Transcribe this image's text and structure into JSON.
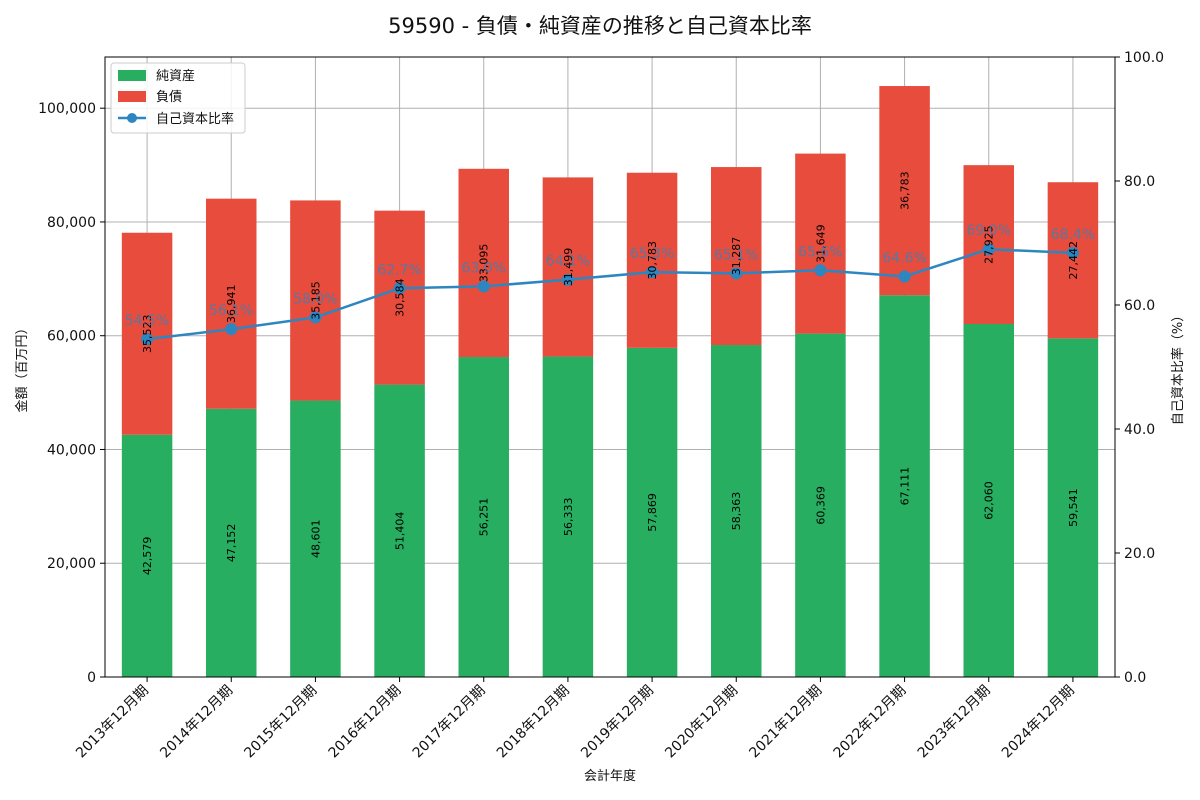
{
  "chart_data": {
    "type": "bar",
    "title": "59590 - 負債・純資産の推移と自己資本比率",
    "xlabel": "会計年度",
    "ylabel": "金額（百万円）",
    "y2label": "自己資本比率（%）",
    "ylim": [
      0,
      109000
    ],
    "y2lim": [
      0,
      100
    ],
    "yticks": [
      "0",
      "20,000",
      "40,000",
      "60,000",
      "80,000",
      "100,000"
    ],
    "y2ticks": [
      "0.0",
      "20.0",
      "40.0",
      "60.0",
      "80.0",
      "100.0"
    ],
    "grid": true,
    "legend_position": "top-left",
    "categories": [
      "2013年12月期",
      "2014年12月期",
      "2015年12月期",
      "2016年12月期",
      "2017年12月期",
      "2018年12月期",
      "2019年12月期",
      "2020年12月期",
      "2021年12月期",
      "2022年12月期",
      "2023年12月期",
      "2024年12月期"
    ],
    "series": [
      {
        "name": "純資産",
        "kind": "bar",
        "color": "#27ae60",
        "values": [
          42579,
          47152,
          48601,
          51404,
          56251,
          56333,
          57869,
          58363,
          60369,
          67111,
          62060,
          59541
        ],
        "labels": [
          "42,579",
          "47,152",
          "48,601",
          "51,404",
          "56,251",
          "56,333",
          "57,869",
          "58,363",
          "60,369",
          "67,111",
          "62,060",
          "59,541"
        ]
      },
      {
        "name": "負債",
        "kind": "bar",
        "color": "#e74c3c",
        "values": [
          35523,
          36941,
          35185,
          30584,
          33095,
          31499,
          30783,
          31287,
          31649,
          36783,
          27925,
          27442
        ],
        "labels": [
          "35,523",
          "36,941",
          "35,185",
          "30,584",
          "33,095",
          "31,499",
          "30,783",
          "31,287",
          "31,649",
          "36,783",
          "27,925",
          "27,442"
        ]
      },
      {
        "name": "自己資本比率",
        "kind": "line",
        "axis": "right",
        "color": "#2e86c1",
        "values": [
          54.5,
          56.1,
          58.0,
          62.7,
          63.0,
          64.1,
          65.3,
          65.1,
          65.6,
          64.6,
          69.0,
          68.4
        ],
        "labels": [
          "54.5%",
          "56.1%",
          "58.0%",
          "62.7%",
          "63.0%",
          "64.1%",
          "65.3%",
          "65.1%",
          "65.6%",
          "64.6%",
          "69.0%",
          "68.4%"
        ]
      }
    ]
  }
}
